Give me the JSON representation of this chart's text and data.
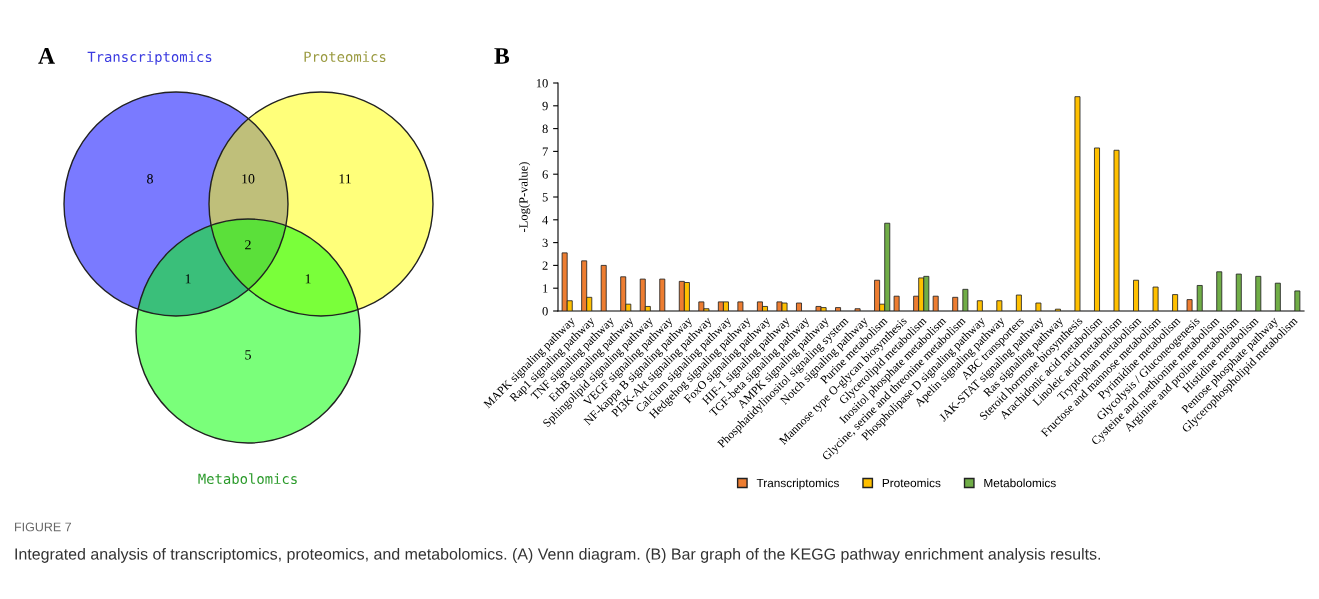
{
  "chart_data": [
    {
      "type": "other",
      "title": "A",
      "annotations": [
        "Transcriptomics",
        "Proteomics",
        "Metabolomics",
        "8",
        "10",
        "11",
        "1",
        "2",
        "1",
        "5",
        "FIGURE 7",
        "Integrated analysis of transcriptomics, proteomics, and metabolomics. (A) Venn diagram. (B) Bar graph of the KEGG pathway enrichment analysis results."
      ]
    },
    {
      "type": "bar",
      "title": "B",
      "ylabel": "-Log(P-value)",
      "categories": [
        "MAPK signaling pathway",
        "Rap1 signaling pathway",
        "TNF signaling pathway",
        "ErbB signaling pathway",
        "Sphingolipid signaling pathway",
        "VEGF signaling pathway",
        "NF-kappa B signaling pathway",
        "PI3K-Akt signaling pathway",
        "Calcium signaling pathway",
        "Hedgehog signaling pathway",
        "FoxO signaling pathway",
        "HIF-1 signaling pathway",
        "TGF-beta signaling pathway",
        "AMPK signaling pathway",
        "Phosphatidylinositol signaling system",
        "Notch signaling pathway",
        "Purine metabolism",
        "Mannose type O-glycan biosynthesis",
        "Glycerolipid metabolism",
        "Inositol phosphate metabolism",
        "Glycine, serine and threonine metabolism",
        "Phospholipase D signaling pathway",
        "Apelin signaling pathway",
        "ABC transporters",
        "JAK-STAT signaling pathway",
        "Ras signaling pathway",
        "Steroid hormone biosynthesis",
        "Arachidonic acid metabolism",
        "Linoleic acid metabolism",
        "Tryptophan metabolism",
        "Fructose and mannose metabolism",
        "Pyrimidine metabolism",
        "Glycolysis / Gluconeogenesis",
        "Cysteine and methionine metabolism",
        "Arginine and proline metabolism",
        "Histidine metabolism",
        "Pentose phosphate pathway",
        "Glycerophospholipid metabolism"
      ],
      "series": [
        {
          "name": "Transcriptomics",
          "color": "#ed7d31",
          "values": [
            2.55,
            2.2,
            2.0,
            1.5,
            1.4,
            1.4,
            1.3,
            0.4,
            0.4,
            0.4,
            0.4,
            0.4,
            0.35,
            0.2,
            0.15,
            0.1,
            1.35,
            0.65,
            0.65,
            0.65,
            0.6,
            null,
            null,
            null,
            null,
            null,
            null,
            null,
            null,
            null,
            null,
            null,
            0.5,
            null,
            null,
            null,
            null,
            null
          ]
        },
        {
          "name": "Proteomics",
          "color": "#ffc000",
          "values": [
            0.45,
            0.6,
            null,
            0.3,
            0.2,
            null,
            1.25,
            0.1,
            0.4,
            null,
            0.2,
            0.35,
            null,
            0.15,
            null,
            null,
            0.3,
            null,
            1.45,
            null,
            null,
            0.45,
            0.45,
            0.7,
            0.35,
            0.08,
            9.4,
            7.15,
            7.05,
            1.35,
            1.05,
            0.72,
            null,
            null,
            null,
            null,
            null,
            null
          ]
        },
        {
          "name": "Metabolomics",
          "color": "#70ad47",
          "values": [
            null,
            null,
            null,
            null,
            null,
            null,
            null,
            null,
            null,
            null,
            null,
            null,
            null,
            null,
            null,
            null,
            3.85,
            null,
            1.52,
            null,
            0.95,
            null,
            null,
            null,
            null,
            null,
            null,
            null,
            null,
            null,
            null,
            null,
            1.12,
            1.72,
            1.62,
            1.52,
            1.22,
            0.88
          ]
        }
      ],
      "ylim": [
        0,
        10
      ],
      "yticks": [
        0,
        1,
        2,
        3,
        4,
        5,
        6,
        7,
        8,
        9,
        10
      ],
      "grid": false,
      "legend": "bottom"
    }
  ]
}
